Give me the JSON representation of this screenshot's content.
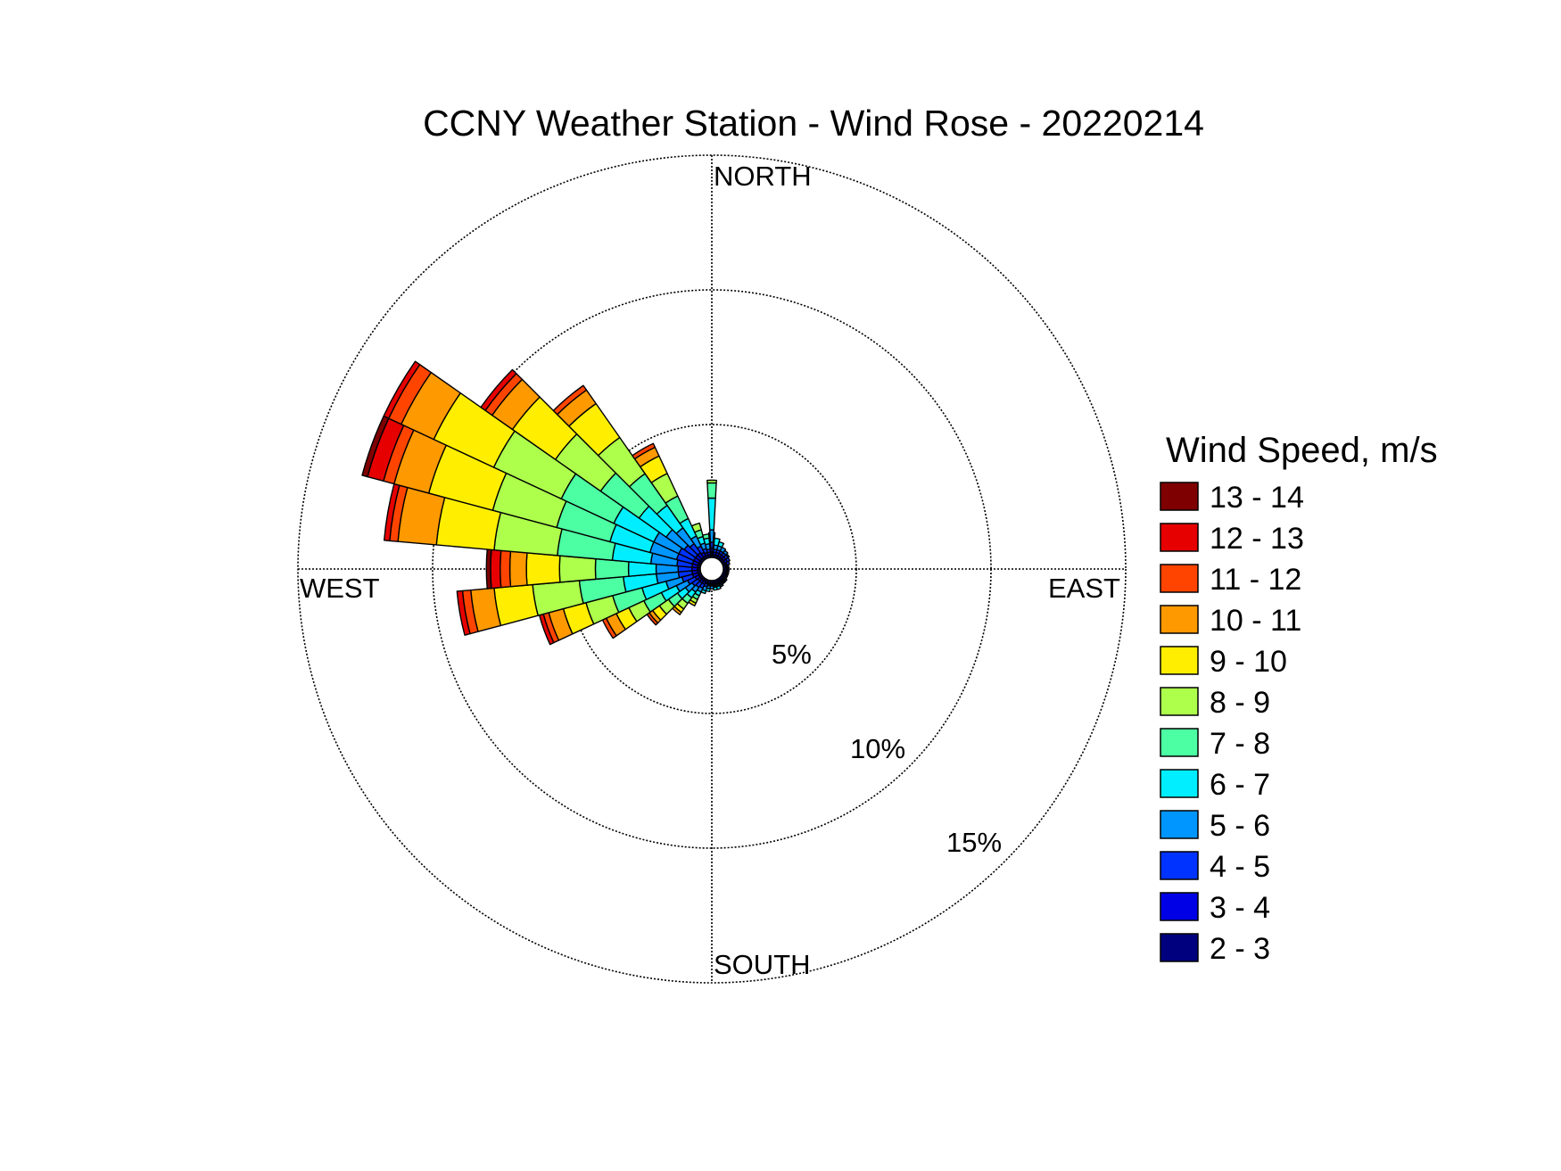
{
  "chart_data": {
    "type": "wind-rose",
    "title": "CCNY Weather Station - Wind Rose - 20220214",
    "directions": [
      "NORTH",
      "EAST",
      "SOUTH",
      "WEST"
    ],
    "ring_labels": [
      "5%",
      "10%",
      "15%"
    ],
    "rings": [
      5,
      10,
      15
    ],
    "rmax": 15,
    "legend_title": "Wind Speed, m/s",
    "speed_bins": [
      "2 - 3",
      "3 - 4",
      "4 - 5",
      "5 - 6",
      "6 - 7",
      "7 - 8",
      "8 - 9",
      "9 - 10",
      "10 - 11",
      "11 - 12",
      "12 - 13",
      "13 - 14"
    ],
    "colors": [
      "#00007f",
      "#0000e6",
      "#0033ff",
      "#0096ff",
      "#00eeff",
      "#4cffa3",
      "#adff4c",
      "#ffee00",
      "#ff9900",
      "#ff4400",
      "#e60000",
      "#7f0000"
    ],
    "sector_width_deg": 10,
    "sectors": [
      {
        "dir": 0,
        "cum": [
          0.1,
          0.15,
          0.2,
          0.35,
          0.6,
          0.9
        ]
      },
      {
        "dir": 10,
        "cum": [
          0.1,
          0.2,
          0.3,
          0.45,
          0.7
        ]
      },
      {
        "dir": 20,
        "cum": [
          0.1,
          0.2,
          0.3,
          0.45,
          0.6
        ]
      },
      {
        "dir": 30,
        "cum": [
          0.1,
          0.2,
          0.3,
          0.45
        ]
      },
      {
        "dir": 40,
        "cum": [
          0.1,
          0.2,
          0.3,
          0.4
        ]
      },
      {
        "dir": 50,
        "cum": [
          0.1,
          0.2,
          0.3,
          0.35
        ]
      },
      {
        "dir": 60,
        "cum": [
          0.1,
          0.2,
          0.3
        ]
      },
      {
        "dir": 70,
        "cum": [
          0.1,
          0.15,
          0.25
        ]
      },
      {
        "dir": 80,
        "cum": [
          0.1,
          0.15,
          0.2
        ]
      },
      {
        "dir": 90,
        "cum": [
          0.1,
          0.15,
          0.2
        ]
      },
      {
        "dir": 100,
        "cum": [
          0.1,
          0.15,
          0.2
        ]
      },
      {
        "dir": 110,
        "cum": [
          0.1,
          0.15,
          0.2
        ]
      },
      {
        "dir": 120,
        "cum": [
          0.1,
          0.15,
          0.2
        ]
      },
      {
        "dir": 130,
        "cum": [
          0.1,
          0.15,
          0.2,
          0.25
        ]
      },
      {
        "dir": 140,
        "cum": [
          0.1,
          0.15,
          0.2,
          0.25
        ]
      },
      {
        "dir": 150,
        "cum": [
          0.1,
          0.15,
          0.2,
          0.25,
          0.3
        ]
      },
      {
        "dir": 160,
        "cum": [
          0.1,
          0.15,
          0.2,
          0.25,
          0.35
        ]
      },
      {
        "dir": 170,
        "cum": [
          0.1,
          0.15,
          0.2,
          0.25,
          0.35
        ]
      },
      {
        "dir": 180,
        "cum": [
          0.1,
          0.15,
          0.2,
          0.3
        ]
      },
      {
        "dir": 190,
        "cum": [
          0.1,
          0.15,
          0.2,
          0.3,
          0.4
        ]
      },
      {
        "dir": 200,
        "cum": [
          0.1,
          0.15,
          0.25,
          0.4,
          0.5
        ]
      },
      {
        "dir": 210,
        "cum": [
          0.1,
          0.2,
          0.35,
          0.5,
          0.65,
          0.8,
          0.95,
          1.05
        ]
      },
      {
        "dir": 220,
        "cum": [
          0.1,
          0.2,
          0.4,
          0.6,
          0.85,
          1.1,
          1.35,
          1.5,
          1.6
        ]
      },
      {
        "dir": 230,
        "cum": [
          0.1,
          0.2,
          0.45,
          0.75,
          1.1,
          1.5,
          1.9,
          2.2,
          2.35,
          2.45
        ]
      },
      {
        "dir": 240,
        "cum": [
          0.1,
          0.25,
          0.55,
          1.0,
          1.6,
          2.3,
          2.9,
          3.4,
          3.8,
          3.95
        ]
      },
      {
        "dir": 250,
        "cum": [
          0.1,
          0.3,
          0.7,
          1.3,
          2.2,
          3.3,
          4.3,
          5.15,
          5.7,
          5.9,
          6.05
        ]
      },
      {
        "dir": 260,
        "cum": [
          0.1,
          0.3,
          0.8,
          1.6,
          2.8,
          4.4,
          6.1,
          7.5,
          8.35,
          8.65,
          8.85
        ]
      },
      {
        "dir": 270,
        "cum": [
          0.1,
          0.3,
          0.8,
          1.6,
          2.6,
          3.8,
          5.1,
          6.3,
          6.9,
          7.25,
          7.6,
          7.75
        ]
      },
      {
        "dir": 280,
        "cum": [
          0.1,
          0.3,
          0.85,
          1.8,
          3.2,
          5.2,
          7.5,
          9.6,
          11.0,
          11.3,
          11.5
        ]
      },
      {
        "dir": 290,
        "cum": [
          0.1,
          0.3,
          0.9,
          1.9,
          3.4,
          5.4,
          7.8,
          10.2,
          11.5,
          11.9,
          12.5,
          12.7
        ]
      },
      {
        "dir": 300,
        "cum": [
          0.1,
          0.3,
          0.9,
          1.9,
          3.5,
          5.6,
          8.3,
          10.7,
          12.0,
          12.5,
          12.7
        ]
      },
      {
        "dir": 310,
        "cum": [
          0.1,
          0.3,
          0.8,
          1.6,
          2.8,
          4.5,
          6.5,
          8.4,
          9.3,
          9.6,
          9.8
        ]
      },
      {
        "dir": 320,
        "cum": [
          0.1,
          0.3,
          0.7,
          1.4,
          2.4,
          3.8,
          5.4,
          6.9,
          7.5,
          7.7
        ]
      },
      {
        "dir": 330,
        "cum": [
          0.1,
          0.25,
          0.5,
          0.9,
          1.6,
          2.5,
          3.4,
          4.1,
          4.45,
          4.6
        ]
      },
      {
        "dir": 340,
        "cum": [
          0.1,
          0.2,
          0.35,
          0.55,
          0.8,
          1.05,
          1.3
        ]
      },
      {
        "dir": 350,
        "cum": [
          0.1,
          0.2,
          0.3,
          0.5,
          0.7,
          0.85
        ]
      },
      {
        "dir": 0,
        "cum": [
          0.2,
          0.35,
          0.55,
          1.0,
          2.15,
          2.7,
          2.8
        ],
        "offset_deg": 0,
        "width_deg": 6
      }
    ]
  }
}
